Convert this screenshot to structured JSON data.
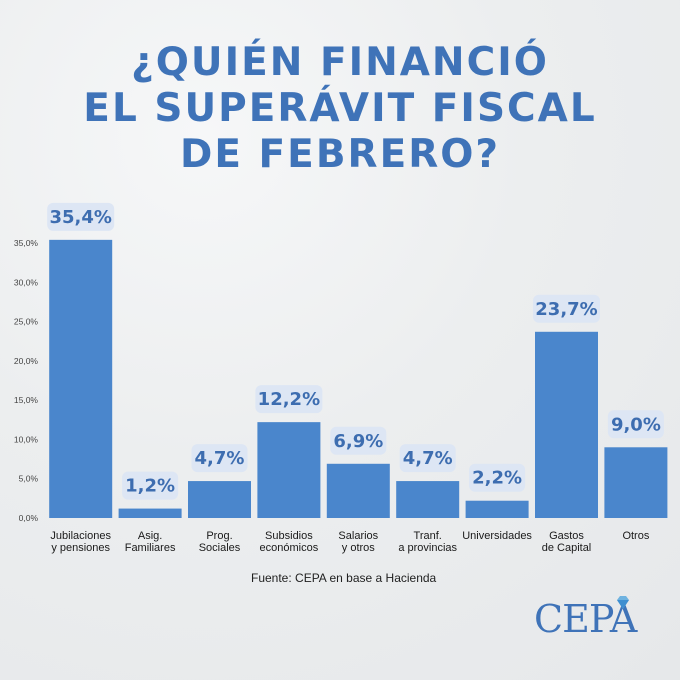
{
  "title_lines": [
    "¿QUIÉN FINANCIÓ",
    "EL SUPERÁVIT FISCAL",
    "DE FEBRERO?"
  ],
  "source": "Fuente: CEPA en base a Hacienda",
  "logo_text": "CEPA",
  "colors": {
    "accent": "#3f73b8",
    "bar": "#4a86cc",
    "label_bg": "#dde6f4",
    "label_text": "#3d6db0",
    "background": "#eef0f1"
  },
  "chart_data": {
    "type": "bar",
    "categories": [
      [
        "Jubilaciones",
        "y pensiones"
      ],
      [
        "Asig.",
        "Familiares"
      ],
      [
        "Prog.",
        "Sociales"
      ],
      [
        "Subsidios",
        "económicos"
      ],
      [
        "Salarios",
        "y otros"
      ],
      [
        "Tranf.",
        "a provincias"
      ],
      [
        "Universidades"
      ],
      [
        "Gastos",
        "de Capital"
      ],
      [
        "Otros"
      ]
    ],
    "values": [
      35.4,
      1.2,
      4.7,
      12.2,
      6.9,
      4.7,
      2.2,
      23.7,
      9.0
    ],
    "data_labels": [
      "35,4%",
      "1,2%",
      "4,7%",
      "12,2%",
      "6,9%",
      "4,7%",
      "2,2%",
      "23,7%",
      "9,0%"
    ],
    "y_ticks": [
      "0,0%",
      "5,0%",
      "10,0%",
      "15,0%",
      "20,0%",
      "25,0%",
      "30,0%",
      "35,0%"
    ],
    "ylim": [
      0,
      35
    ],
    "grid": false
  }
}
